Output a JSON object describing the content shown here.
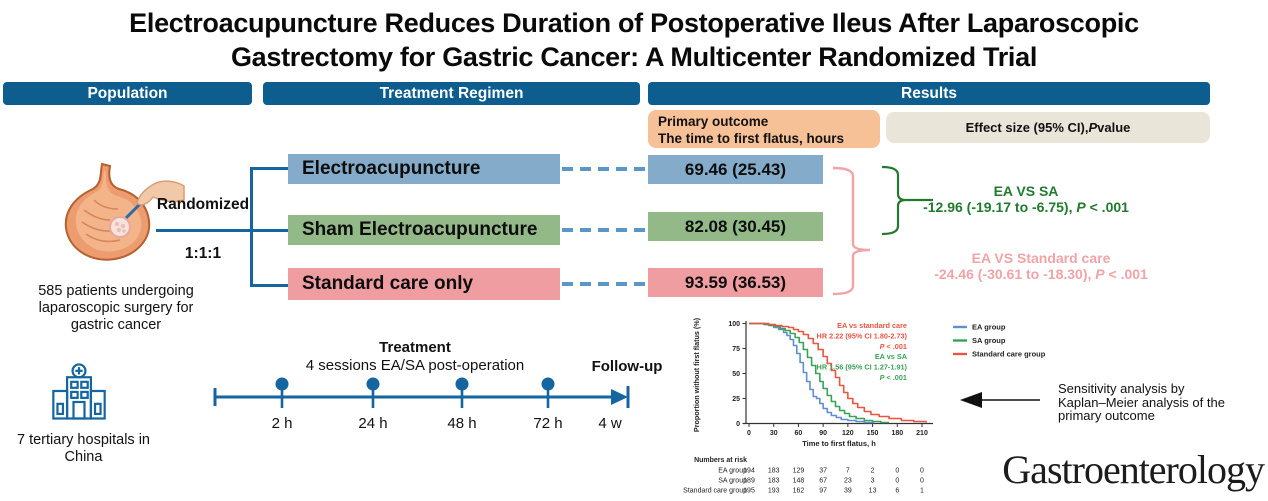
{
  "title": "Electroacupuncture Reduces Duration of Postoperative Ileus After Laparoscopic Gastrectomy for Gastric Cancer: A Multicenter Randomized Trial",
  "headers": {
    "population": "Population",
    "treatment": "Treatment Regimen",
    "results": "Results"
  },
  "population": {
    "patients_caption": "585 patients undergoing laparoscopic surgery for gastric cancer",
    "hospitals_caption": "7 tertiary hospitals in China"
  },
  "randomization": {
    "label": "Randomized",
    "ratio": "1:1:1"
  },
  "arms": [
    {
      "name": "Electroacupuncture",
      "color": "#84ABC9",
      "mean_sd": "69.46 (25.43)"
    },
    {
      "name": "Sham Electroacupuncture",
      "color": "#94B989",
      "mean_sd": "82.08 (30.45)"
    },
    {
      "name": "Standard care only",
      "color": "#EF9DA1",
      "mean_sd": "93.59 (36.53)"
    }
  ],
  "results_panel": {
    "primary_outcome_title": "Primary outcome",
    "primary_outcome_subtitle": "The time to first flatus, hours",
    "effect_header": {
      "pre": "Effect size (95% CI), ",
      "italic": "P",
      "post": " value"
    },
    "comparisons": [
      {
        "label": "EA VS SA",
        "value": "-12.96 (-19.17 to -6.75), ",
        "p_italic": "P",
        "p_rest": " < .001",
        "color": "#217A2E"
      },
      {
        "label": "EA VS Standard care",
        "value": "-24.46 (-30.61 to -18.30), ",
        "p_italic": "P",
        "p_rest": " < .001",
        "color": "#F2A3A7"
      }
    ]
  },
  "timeline": {
    "treatment_label": "Treatment",
    "treatment_subtitle": "4 sessions EA/SA post-operation",
    "followup_label": "Follow-up",
    "ticks": [
      "2 h",
      "24 h",
      "48 h",
      "72 h"
    ],
    "end_label": "4 w"
  },
  "sensitivity_note": "Sensitivity analysis by Kaplan–Meier analysis of the primary outcome",
  "journal": "Gastroenterology",
  "colors": {
    "header_bar": "#0E5D8F",
    "branch_line": "#1565A0",
    "dashed_connector": "#5B96C8",
    "primary_outcome_box": "#F7C197",
    "effect_box": "#E9E6D9",
    "ea_blue": "#84ABC9",
    "sa_green": "#94B989",
    "standard_pink": "#EF9DA1",
    "green_text": "#217A2E",
    "pink_text": "#F2A3A7"
  },
  "chart_data": {
    "type": "line",
    "title": "",
    "xlabel": "Time to first flatus, h",
    "ylabel": "Proportion without first flatus (%)",
    "xlim": [
      0,
      220
    ],
    "ylim": [
      0,
      100
    ],
    "xticks": [
      0,
      30,
      60,
      90,
      120,
      150,
      180,
      210
    ],
    "yticks": [
      0,
      25,
      50,
      75,
      100
    ],
    "grid": false,
    "legend_position": "right",
    "series": [
      {
        "name": "EA group",
        "color": "#5F8FD0",
        "x": [
          0,
          18,
          24,
          30,
          36,
          42,
          46,
          50,
          54,
          58,
          62,
          66,
          70,
          74,
          78,
          82,
          86,
          90,
          95,
          100,
          106,
          112,
          120,
          130,
          140,
          152
        ],
        "y": [
          100,
          99,
          98,
          96,
          94,
          91,
          88,
          84,
          78,
          70,
          61,
          51,
          42,
          34,
          27,
          25,
          20,
          15,
          11,
          8,
          6,
          4,
          3,
          2,
          1,
          1
        ]
      },
      {
        "name": "SA group",
        "color": "#39A257",
        "x": [
          0,
          20,
          26,
          32,
          38,
          44,
          50,
          56,
          61,
          66,
          71,
          76,
          81,
          86,
          90,
          95,
          100,
          105,
          110,
          116,
          122,
          130,
          140,
          150,
          160,
          170
        ],
        "y": [
          100,
          99,
          98,
          97,
          95,
          93,
          90,
          86,
          81,
          74,
          66,
          58,
          50,
          42,
          35,
          28,
          22,
          17,
          13,
          10,
          7,
          5,
          3,
          2,
          1,
          1
        ]
      },
      {
        "name": "Standard care group",
        "color": "#EE5340",
        "x": [
          0,
          24,
          32,
          40,
          48,
          54,
          60,
          66,
          72,
          78,
          84,
          90,
          95,
          100,
          105,
          110,
          115,
          120,
          126,
          132,
          140,
          148,
          158,
          170,
          185,
          200,
          215
        ],
        "y": [
          100,
          99,
          98,
          97,
          96,
          94,
          92,
          89,
          85,
          80,
          74,
          67,
          60,
          53,
          46,
          38,
          31,
          25,
          20,
          16,
          12,
          9,
          7,
          5,
          3,
          2,
          1
        ]
      }
    ],
    "annotations": [
      {
        "color": "#EE5340",
        "lines": [
          {
            "text": "EA vs standard care"
          },
          {
            "text": "HR 2.22 (95% CI 1.80-2.73)"
          },
          {
            "italic_prefix": "P",
            "rest": " < .001"
          }
        ]
      },
      {
        "color": "#39A257",
        "lines": [
          {
            "text": "EA vs SA"
          },
          {
            "text": "HR 1.56 (95% CI 1.27-1.91)"
          },
          {
            "italic_prefix": "P",
            "rest": " < .001"
          }
        ]
      }
    ],
    "numbers_at_risk": {
      "label": "Numbers at risk",
      "times": [
        0,
        30,
        60,
        90,
        120,
        150,
        180,
        210
      ],
      "rows": [
        {
          "name": "EA group",
          "values": [
            194,
            183,
            129,
            37,
            7,
            2,
            0,
            0
          ]
        },
        {
          "name": "SA group",
          "values": [
            189,
            183,
            148,
            67,
            23,
            3,
            0,
            0
          ]
        },
        {
          "name": "Standard care group",
          "values": [
            195,
            193,
            162,
            97,
            39,
            13,
            6,
            1
          ]
        }
      ]
    }
  }
}
